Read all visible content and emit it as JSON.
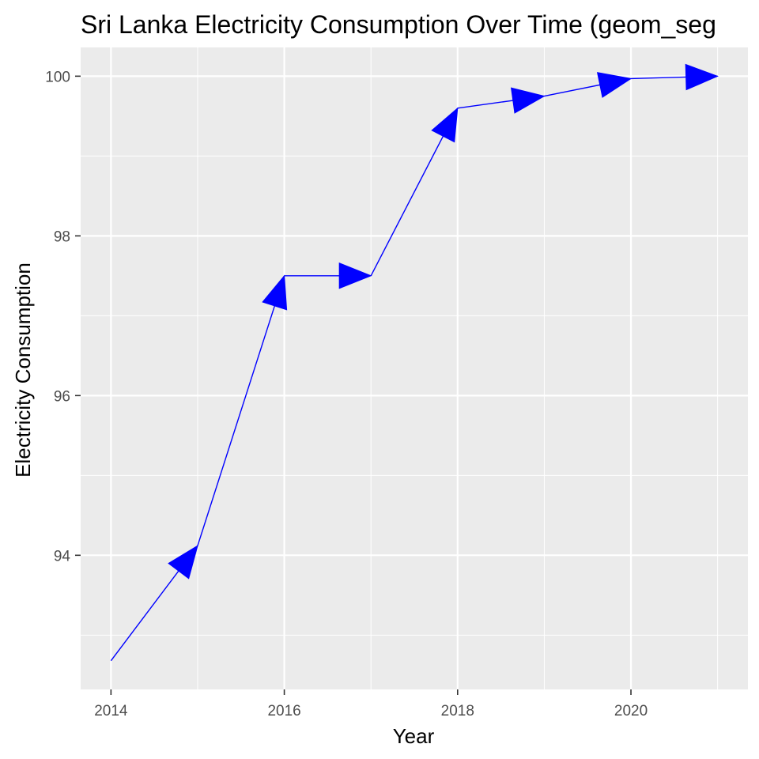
{
  "chart_data": {
    "type": "line",
    "title": "Sri Lanka Electricity Consumption Over Time (geom_seg",
    "xlabel": "Year",
    "ylabel": "Electricity Consumption",
    "xlim": [
      2013.65,
      2021.35
    ],
    "ylim": [
      92.32,
      100.36
    ],
    "x_ticks": [
      2014,
      2016,
      2018,
      2020
    ],
    "x_tick_labels": [
      "2014",
      "2016",
      "2018",
      "2020"
    ],
    "x_minor": [
      2015,
      2017,
      2019,
      2021
    ],
    "y_ticks": [
      94,
      96,
      98,
      100
    ],
    "y_tick_labels": [
      "94",
      "96",
      "98",
      "100"
    ],
    "y_minor": [
      93,
      95,
      97,
      99
    ],
    "grid": true,
    "legend": "none",
    "series": [
      {
        "x": [
          2014,
          2015,
          2016,
          2017,
          2018,
          2019,
          2020,
          2021
        ],
        "values": [
          92.68,
          94.12,
          97.5,
          97.5,
          99.6,
          99.75,
          99.97,
          100.0
        ],
        "mark": "segment-with-arrowhead",
        "color": "#0000ff"
      }
    ],
    "panel_background": "#ebebeb",
    "grid_color": "#ffffff",
    "tick_color": "#333333"
  }
}
